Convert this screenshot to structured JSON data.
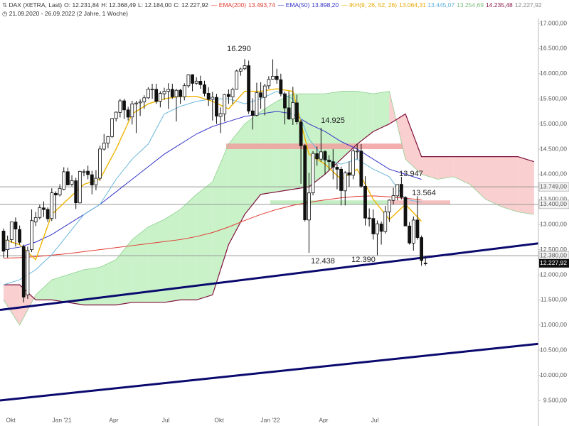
{
  "chart_data": {
    "type": "candlestick",
    "title": "DAX (XETRA, Last)",
    "ohlc_text": [
      "O: 12.231,84",
      "H: 12.368,49",
      "L: 12.184,00",
      "C: 12.227,92"
    ],
    "period": "21.09.2020 - 26.09.2022 (2 Jahre, 1 Woche)",
    "categories_x": [
      "Okt",
      "Jan '21",
      "Apr",
      "Jul",
      "Okt",
      "Jan '22",
      "Apr",
      "Jul"
    ],
    "ylim": [
      9500,
      17000
    ],
    "yticks": [
      {
        "value": 17000,
        "label": "17.000,00"
      },
      {
        "value": 16500,
        "label": "16.500,00"
      },
      {
        "value": 16000,
        "label": "16.000,00"
      },
      {
        "value": 15500,
        "label": "15.500,00"
      },
      {
        "value": 15000,
        "label": "15.000,00"
      },
      {
        "value": 14500,
        "label": "14.500,00"
      },
      {
        "value": 14000,
        "label": "14.000,00"
      },
      {
        "value": 13500,
        "label": "13.500,00"
      },
      {
        "value": 13000,
        "label": "13.000,00"
      },
      {
        "value": 12500,
        "label": "12.500,00"
      },
      {
        "value": 12000,
        "label": "12.000,00"
      },
      {
        "value": 11500,
        "label": "11.500,00"
      },
      {
        "value": 11000,
        "label": "11.000,00"
      },
      {
        "value": 10500,
        "label": "10.500,00"
      },
      {
        "value": 10000,
        "label": "10.000,00"
      },
      {
        "value": 9500,
        "label": "9.500,00"
      }
    ],
    "candles": [
      [
        12870,
        12920,
        12340,
        12469
      ],
      [
        12500,
        12780,
        12340,
        12689
      ],
      [
        12700,
        13060,
        12640,
        13051
      ],
      [
        13050,
        13140,
        12560,
        12909
      ],
      [
        12900,
        12980,
        12600,
        12646
      ],
      [
        12560,
        12600,
        11450,
        11556
      ],
      [
        11600,
        12560,
        11520,
        12480
      ],
      [
        12500,
        13300,
        12450,
        13077
      ],
      [
        13050,
        13250,
        12970,
        13137
      ],
      [
        13140,
        13390,
        13100,
        13335
      ],
      [
        13330,
        13460,
        13150,
        13298
      ],
      [
        13300,
        13340,
        13050,
        13114
      ],
      [
        13120,
        13720,
        13070,
        13630
      ],
      [
        13620,
        13660,
        13110,
        13587
      ],
      [
        13590,
        13800,
        13560,
        13719
      ],
      [
        13700,
        14140,
        13680,
        14049
      ],
      [
        14050,
        14130,
        13780,
        13787
      ],
      [
        13800,
        13980,
        13760,
        13873
      ],
      [
        13870,
        13930,
        13310,
        13432
      ],
      [
        13430,
        14070,
        13420,
        14057
      ],
      [
        14050,
        14100,
        13960,
        14050
      ],
      [
        14060,
        14170,
        13900,
        13993
      ],
      [
        13990,
        14070,
        13600,
        13786
      ],
      [
        13790,
        14080,
        13680,
        13920
      ],
      [
        13920,
        14570,
        13870,
        14502
      ],
      [
        14500,
        14800,
        14470,
        14621
      ],
      [
        14620,
        14760,
        14520,
        14748
      ],
      [
        14750,
        15120,
        14720,
        15107
      ],
      [
        15110,
        15250,
        15050,
        15234
      ],
      [
        15230,
        15500,
        15130,
        15460
      ],
      [
        15460,
        15500,
        15100,
        15280
      ],
      [
        15280,
        15340,
        15070,
        15136
      ],
      [
        15140,
        15460,
        14990,
        15400
      ],
      [
        15400,
        15460,
        14820,
        15416
      ],
      [
        15420,
        15490,
        15160,
        15437
      ],
      [
        15440,
        15570,
        15300,
        15520
      ],
      [
        15520,
        15730,
        15500,
        15693
      ],
      [
        15690,
        15800,
        15500,
        15693
      ],
      [
        15690,
        15800,
        15400,
        15448
      ],
      [
        15450,
        15650,
        15330,
        15607
      ],
      [
        15600,
        15720,
        15480,
        15650
      ],
      [
        15650,
        15810,
        15300,
        15688
      ],
      [
        15690,
        15800,
        15500,
        15540
      ],
      [
        15540,
        15700,
        15050,
        15669
      ],
      [
        15670,
        15700,
        15400,
        15544
      ],
      [
        15540,
        15810,
        15470,
        15761
      ],
      [
        15760,
        15990,
        15720,
        15977
      ],
      [
        15980,
        15990,
        15650,
        15808
      ],
      [
        15810,
        15930,
        15780,
        15852
      ],
      [
        15850,
        15960,
        15700,
        15781
      ],
      [
        15780,
        15860,
        15550,
        15609
      ],
      [
        15610,
        15730,
        15360,
        15490
      ],
      [
        15490,
        15640,
        15070,
        15531
      ],
      [
        15530,
        15600,
        15000,
        15156
      ],
      [
        15150,
        15330,
        14820,
        15206
      ],
      [
        15200,
        15600,
        15050,
        15587
      ],
      [
        15590,
        15690,
        15400,
        15543
      ],
      [
        15540,
        15720,
        15400,
        15688
      ],
      [
        15690,
        16080,
        15690,
        16054
      ],
      [
        16050,
        16120,
        15960,
        16094
      ],
      [
        16100,
        16290,
        16070,
        16160
      ],
      [
        16160,
        16260,
        15200,
        15257
      ],
      [
        15260,
        15510,
        14890,
        15169
      ],
      [
        15170,
        15820,
        15150,
        15623
      ],
      [
        15620,
        15830,
        15300,
        15532
      ],
      [
        15530,
        15800,
        15170,
        15756
      ],
      [
        15760,
        15950,
        15700,
        15885
      ],
      [
        15890,
        16285,
        15880,
        15948
      ],
      [
        15950,
        16100,
        15800,
        15883
      ],
      [
        15880,
        16000,
        15550,
        15603
      ],
      [
        15600,
        15640,
        14990,
        15318
      ],
      [
        15320,
        15650,
        15080,
        15100
      ],
      [
        15100,
        15740,
        14980,
        15425
      ],
      [
        15420,
        15580,
        14990,
        15043
      ],
      [
        15040,
        15080,
        13810,
        14567
      ],
      [
        14570,
        14600,
        13060,
        13094
      ],
      [
        13090,
        14030,
        12438,
        13628
      ],
      [
        13630,
        14460,
        13580,
        14413
      ],
      [
        14410,
        14550,
        14170,
        14306
      ],
      [
        14300,
        14925,
        14250,
        14446
      ],
      [
        14450,
        14480,
        14000,
        14284
      ],
      [
        14280,
        14380,
        14080,
        14252
      ],
      [
        14250,
        14500,
        13900,
        14143
      ],
      [
        14140,
        14200,
        13700,
        14098
      ],
      [
        14100,
        14150,
        13380,
        13675
      ],
      [
        13670,
        14060,
        13380,
        14027
      ],
      [
        14030,
        14250,
        13750,
        13982
      ],
      [
        13980,
        14500,
        13900,
        14462
      ],
      [
        14460,
        14600,
        14300,
        14460
      ],
      [
        14460,
        14600,
        13730,
        13762
      ],
      [
        13760,
        13960,
        12980,
        13127
      ],
      [
        13130,
        13320,
        12960,
        13119
      ],
      [
        13120,
        13300,
        12700,
        12813
      ],
      [
        12810,
        13080,
        12390,
        13015
      ],
      [
        13010,
        13060,
        12600,
        12864
      ],
      [
        12860,
        13370,
        12820,
        13254
      ],
      [
        13250,
        13500,
        13050,
        13484
      ],
      [
        13480,
        13730,
        13400,
        13574
      ],
      [
        13570,
        13800,
        13480,
        13795
      ],
      [
        13800,
        13947,
        13500,
        13544
      ],
      [
        13540,
        13560,
        12970,
        12971
      ],
      [
        12970,
        13050,
        12600,
        12631
      ],
      [
        12630,
        13160,
        12480,
        13088
      ],
      [
        13090,
        13564,
        12700,
        12741
      ],
      [
        12740,
        12780,
        12180,
        12284
      ],
      [
        12231.84,
        12368.49,
        12184,
        12227.92
      ]
    ],
    "series": [
      {
        "name": "EMA(200)",
        "value_label": "13.493,74",
        "color": "#e03c31",
        "values": [
          12330,
          12340,
          12360,
          12390,
          12420,
          12460,
          12500,
          12540,
          12580,
          12620,
          12660,
          12700,
          12760,
          12840,
          12950,
          13080,
          13200,
          13300,
          13380,
          13440,
          13490,
          13530,
          13560,
          13570,
          13550,
          13520,
          13494
        ]
      },
      {
        "name": "EMA(50)",
        "value_label": "13.898,20",
        "color": "#3434c8",
        "values": [
          12500,
          12550,
          12650,
          12800,
          13000,
          13200,
          13400,
          13650,
          13900,
          14150,
          14400,
          14600,
          14800,
          14950,
          15050,
          15150,
          15200,
          15250,
          15200,
          15000,
          14850,
          14650,
          14500,
          14300,
          14100,
          14000,
          13898
        ]
      }
    ],
    "ichimoku": {
      "name": "IKH(9, 26, 52, 26)",
      "value_labels": [
        "13.064,31",
        "13.445,07",
        "13.254,69",
        "14.235,48",
        "12.227,92"
      ],
      "label_colors": [
        "#e8a800",
        "#5fb3d9",
        "#7fbf7f",
        "#8b1a4a",
        "#888888"
      ],
      "tenkan": {
        "color": "#f0b400",
        "values": [
          12700,
          12600,
          12300,
          13200,
          13500,
          13800,
          13900,
          14500,
          15200,
          15400,
          15500,
          15550,
          15550,
          15450,
          15300,
          15650,
          15650,
          15700,
          15650,
          14400,
          14200,
          13900,
          14100,
          13500,
          13100,
          13400,
          13064
        ]
      },
      "kijun": {
        "color": "#6bb8db",
        "values": [
          11800,
          11900,
          12100,
          12400,
          12800,
          13200,
          13400,
          13900,
          14300,
          14600,
          15200,
          15350,
          15450,
          15500,
          15500,
          15400,
          15500,
          15650,
          15500,
          14700,
          14300,
          14200,
          14300,
          14100,
          13950,
          13500,
          13445
        ]
      },
      "span_a": {
        "color": "#8fcf8f",
        "values": [
          11500,
          11000,
          11600,
          11900,
          12000,
          12100,
          12150,
          12300,
          12700,
          12950,
          13100,
          13300,
          13600,
          13850,
          14600,
          15000,
          15250,
          15450,
          15600,
          15600,
          15600,
          15650,
          15650,
          15600,
          15650,
          14300,
          14000,
          13900,
          13950,
          13800,
          13500,
          13350,
          13250,
          13200
        ]
      },
      "span_b": {
        "color": "#80103c",
        "values": [
          11800,
          11800,
          11500,
          11500,
          11450,
          11400,
          11400,
          11400,
          11450,
          11450,
          11450,
          11500,
          11500,
          11600,
          12600,
          13200,
          13600,
          13650,
          13700,
          13750,
          14000,
          14300,
          14600,
          14850,
          15000,
          15200,
          14350,
          14350,
          14350,
          14350,
          14350,
          14350,
          14350,
          14250
        ]
      },
      "cloud_colors": [
        "#c9f2c9",
        "#f9cfcf"
      ]
    },
    "levels": [
      {
        "value": 13749,
        "label": "13.749,00"
      },
      {
        "value": 13400,
        "label": "13.400,00"
      },
      {
        "value": 12380,
        "label": "12.380,00"
      }
    ],
    "last": {
      "value": 12227.92,
      "label": "12.227,92"
    },
    "zones": [
      {
        "low": 14500,
        "high": 14610,
        "color": "#f2a0a0"
      },
      {
        "low": 13400,
        "high": 13480,
        "color": "#b9eab9"
      },
      {
        "low": 13400,
        "high": 13480,
        "color": "#f4b4b4"
      }
    ],
    "trendlines": [
      {
        "start": 11300,
        "end": 12700,
        "color": "#0a0a6e"
      },
      {
        "start": 9500,
        "end": 10690,
        "color": "#0a0a6e"
      }
    ],
    "annotations": [
      "16.290",
      "14.925",
      "13.947",
      "13.564",
      "12.438",
      "12.390"
    ]
  }
}
